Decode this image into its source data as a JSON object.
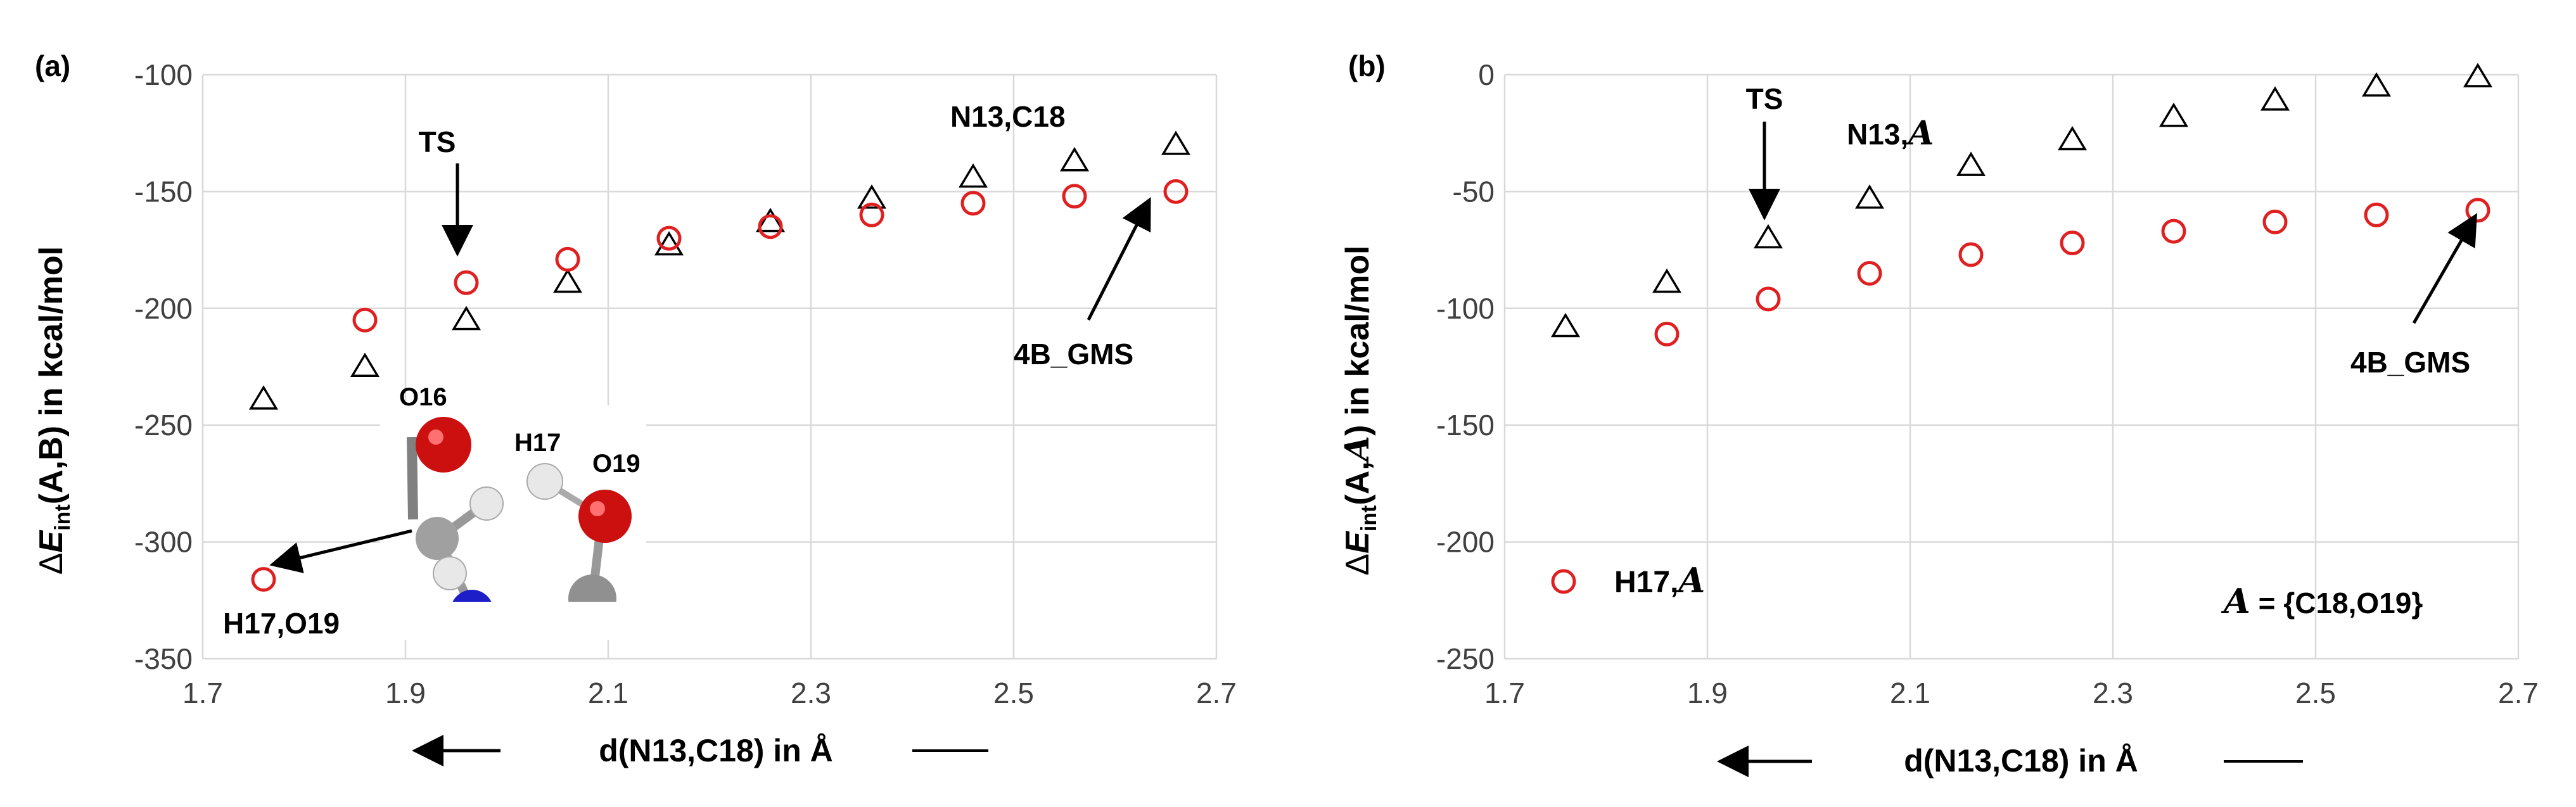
{
  "chart_data": [
    {
      "type": "scatter",
      "panel_label": "(a)",
      "xlim": [
        1.7,
        2.7
      ],
      "xticks": [
        "1.7",
        "1.9",
        "2.1",
        "2.3",
        "2.5",
        "2.7"
      ],
      "ylim": [
        -350,
        -100
      ],
      "yticks": [
        "-350",
        "-300",
        "-250",
        "-200",
        "-150",
        "-100"
      ],
      "ylabel": {
        "delta": "Δ",
        "E": "E",
        "sub": "int",
        "rest": "(A,B) in kcal/mol"
      },
      "xlabel": "d(N13,C18)  in Å",
      "grid": true,
      "series": [
        {
          "name": "N13,C18",
          "marker": "triangle",
          "color": "#000000",
          "x": [
            1.76,
            1.86,
            1.96,
            2.06,
            2.16,
            2.26,
            2.36,
            2.46,
            2.56,
            2.66
          ],
          "y": [
            -239,
            -225,
            -205,
            -189,
            -173,
            -163,
            -153,
            -144,
            -137,
            -130
          ]
        },
        {
          "name": "H17,O19",
          "marker": "circle",
          "color": "#e02020",
          "x": [
            1.76,
            1.86,
            1.96,
            2.06,
            2.16,
            2.26,
            2.36,
            2.46,
            2.56,
            2.66
          ],
          "y": [
            -316,
            -205,
            -189,
            -179,
            -170,
            -165,
            -160,
            -155,
            -152,
            -150
          ]
        }
      ],
      "annotations": {
        "ts": "TS",
        "gms": "4B_GMS",
        "series_top": "N13,C18",
        "series_bottom": "H17,O19"
      },
      "inset_atoms": {
        "o16": "O16",
        "h17": "H17",
        "o19": "O19"
      }
    },
    {
      "type": "scatter",
      "panel_label": "(b)",
      "xlim": [
        1.7,
        2.7
      ],
      "xticks": [
        "1.7",
        "1.9",
        "2.1",
        "2.3",
        "2.5",
        "2.7"
      ],
      "ylim": [
        -250,
        0
      ],
      "yticks": [
        "-250",
        "-200",
        "-150",
        "-100",
        "-50",
        "0"
      ],
      "ylabel": {
        "delta": "Δ",
        "E": "E",
        "sub": "int",
        "rest": "(A,",
        "script": "A",
        "close": ") in kcal/mol"
      },
      "xlabel": "d(N13,C18)  in Å",
      "grid": true,
      "series": [
        {
          "name": "N13,A",
          "marker": "triangle",
          "color": "#000000",
          "x": [
            1.76,
            1.86,
            1.96,
            2.06,
            2.16,
            2.26,
            2.36,
            2.46,
            2.56,
            2.66
          ],
          "y": [
            -108,
            -89,
            -70,
            -53,
            -39,
            -28,
            -18,
            -11,
            -5,
            -1
          ]
        },
        {
          "name": "H17,A",
          "marker": "circle",
          "color": "#e02020",
          "x": [
            1.86,
            1.96,
            2.06,
            2.16,
            2.26,
            2.36,
            2.46,
            2.56,
            2.66
          ],
          "y": [
            -111,
            -96,
            -85,
            -77,
            -72,
            -67,
            -63,
            -60,
            -58
          ]
        }
      ],
      "annotations": {
        "ts": "TS",
        "gms": "4B_GMS"
      },
      "series_label_text": "N13,",
      "legend_text": "H17,",
      "script_a": "A",
      "definition": {
        "prefix": " = {C18,O19}"
      }
    }
  ]
}
